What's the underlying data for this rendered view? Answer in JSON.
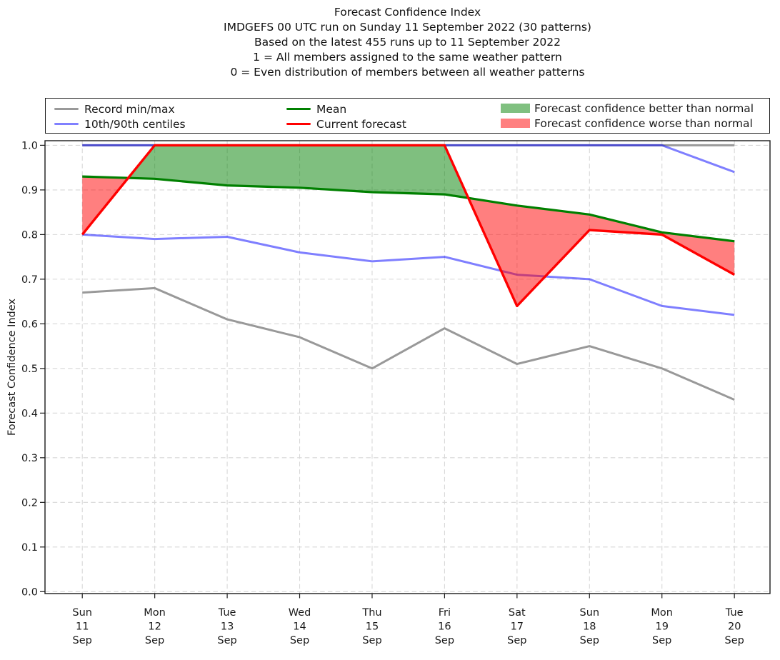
{
  "header": {
    "title_lines": [
      "Forecast Confidence Index",
      "IMDGEFS 00 UTC run on Sunday 11 September 2022 (30 patterns)",
      "Based on the latest 455 runs up to 11 September 2022",
      "1 = All members assigned to the same weather pattern",
      "0 = Even distribution of members between all weather patterns"
    ]
  },
  "legend": {
    "items": [
      {
        "label": "Record min/max",
        "type": "line",
        "color": "#999999"
      },
      {
        "label": "10th/90th centiles",
        "type": "line",
        "color": "#8080ff"
      },
      {
        "label": "Mean",
        "type": "line",
        "color": "#008000"
      },
      {
        "label": "Current forecast",
        "type": "line",
        "color": "#ff0000"
      },
      {
        "label": "Forecast confidence better than normal",
        "type": "patch",
        "color": "#80c080"
      },
      {
        "label": "Forecast confidence worse than normal",
        "type": "patch",
        "color": "#ff8080"
      }
    ]
  },
  "chart_data": {
    "type": "line",
    "title": "Forecast Confidence Index",
    "ylabel": "Forecast Confidence Index",
    "ylim": [
      0.0,
      1.0
    ],
    "grid": true,
    "legend_position": "top",
    "yticks": [
      "0.0",
      "0.1",
      "0.2",
      "0.3",
      "0.4",
      "0.5",
      "0.6",
      "0.7",
      "0.8",
      "0.9",
      "1.0"
    ],
    "categories": [
      {
        "dow": "Sun",
        "day": "11",
        "mon": "Sep"
      },
      {
        "dow": "Mon",
        "day": "12",
        "mon": "Sep"
      },
      {
        "dow": "Tue",
        "day": "13",
        "mon": "Sep"
      },
      {
        "dow": "Wed",
        "day": "14",
        "mon": "Sep"
      },
      {
        "dow": "Thu",
        "day": "15",
        "mon": "Sep"
      },
      {
        "dow": "Fri",
        "day": "16",
        "mon": "Sep"
      },
      {
        "dow": "Sat",
        "day": "17",
        "mon": "Sep"
      },
      {
        "dow": "Sun",
        "day": "18",
        "mon": "Sep"
      },
      {
        "dow": "Mon",
        "day": "19",
        "mon": "Sep"
      },
      {
        "dow": "Tue",
        "day": "20",
        "mon": "Sep"
      }
    ],
    "series": [
      {
        "name": "Record max",
        "color": "#999999",
        "opacity": 1,
        "width": 3,
        "below_fills": true,
        "values": [
          1.0,
          1.0,
          1.0,
          1.0,
          1.0,
          1.0,
          1.0,
          1.0,
          1.0,
          1.0
        ]
      },
      {
        "name": "Record min",
        "color": "#999999",
        "opacity": 1,
        "width": 3,
        "below_fills": true,
        "values": [
          0.67,
          0.68,
          0.61,
          0.57,
          0.5,
          0.59,
          0.51,
          0.55,
          0.5,
          0.43
        ]
      },
      {
        "name": "90th centile",
        "color": "#0000ff",
        "opacity": 0.5,
        "width": 3,
        "below_fills": true,
        "values": [
          1.0,
          1.0,
          1.0,
          1.0,
          1.0,
          1.0,
          1.0,
          1.0,
          1.0,
          0.94
        ]
      },
      {
        "name": "10th centile",
        "color": "#0000ff",
        "opacity": 0.5,
        "width": 3,
        "below_fills": true,
        "values": [
          0.8,
          0.79,
          0.795,
          0.76,
          0.74,
          0.75,
          0.71,
          0.7,
          0.64,
          0.62
        ]
      },
      {
        "name": "Mean",
        "color": "#008000",
        "opacity": 1,
        "width": 3.2,
        "below_fills": false,
        "values": [
          0.93,
          0.925,
          0.91,
          0.905,
          0.895,
          0.89,
          0.865,
          0.845,
          0.805,
          0.785
        ]
      },
      {
        "name": "Current forecast",
        "color": "#ff0000",
        "opacity": 1,
        "width": 3.4,
        "below_fills": false,
        "values": [
          0.8,
          1.0,
          1.0,
          1.0,
          1.0,
          1.0,
          0.64,
          0.81,
          0.8,
          0.71
        ]
      }
    ],
    "fills": {
      "upper": "Current forecast",
      "lower": "Mean",
      "above_color": "#008000",
      "below_color": "#ff0000",
      "opacity": 0.5
    }
  }
}
